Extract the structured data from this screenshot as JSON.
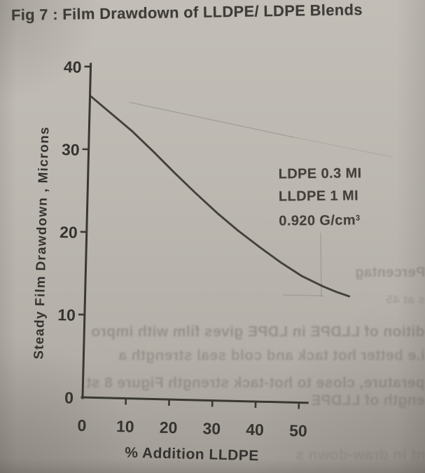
{
  "page": {
    "title": "Fig 7 : Film Drawdown of LLDPE/ LDPE Blends"
  },
  "colors": {
    "paper": "#bcb8b1",
    "ink": "#3a3834",
    "ghost_ink": "#5d564d"
  },
  "chart_data": {
    "type": "line",
    "title": "Fig 7 : Film Drawdown of LLDPE/ LDPE Blends",
    "xlabel": "% Addition LLDPE",
    "ylabel": "Steady Film Drawdown , Microns",
    "xlim": [
      0,
      52
    ],
    "ylim": [
      0,
      40
    ],
    "x_ticks": [
      0,
      10,
      20,
      30,
      40,
      50
    ],
    "y_ticks": [
      0,
      10,
      20,
      30,
      40
    ],
    "grid": false,
    "legend_position": "none",
    "annotations": [
      "LDPE 0.3 MI",
      "LLDPE 1 MI",
      "0.920 G/cm³"
    ],
    "series": [
      {
        "points": [
          [
            0,
            36.5
          ],
          [
            5,
            34.4
          ],
          [
            10,
            32.3
          ],
          [
            15,
            29.9
          ],
          [
            20,
            27.4
          ],
          [
            25,
            25.0
          ],
          [
            30,
            22.7
          ],
          [
            35,
            20.6
          ],
          [
            40,
            18.7
          ],
          [
            45,
            16.9
          ],
          [
            50,
            15.3
          ],
          [
            55,
            14.1
          ],
          [
            58,
            13.5
          ],
          [
            61,
            13.0
          ]
        ]
      }
    ]
  },
  "annotation_block": {
    "line1": "LDPE 0.3 MI",
    "line2": "LLDPE 1 MI",
    "density_base": "0.920 G/cm",
    "density_sup": "3"
  },
  "ghost_text": {
    "percent_label": "Percentag",
    "right_small": "s at 45",
    "line1": "dition of LLDPE in LDPE gives film with impro",
    "line2": "i.e better hot tack and cold seal strength a",
    "line3": "perature, close to hot-tack strength Figure 8 st",
    "line4": "ength of LLDPE/LDPE blend films with incre",
    "bottom": "nt in draw-down s"
  }
}
